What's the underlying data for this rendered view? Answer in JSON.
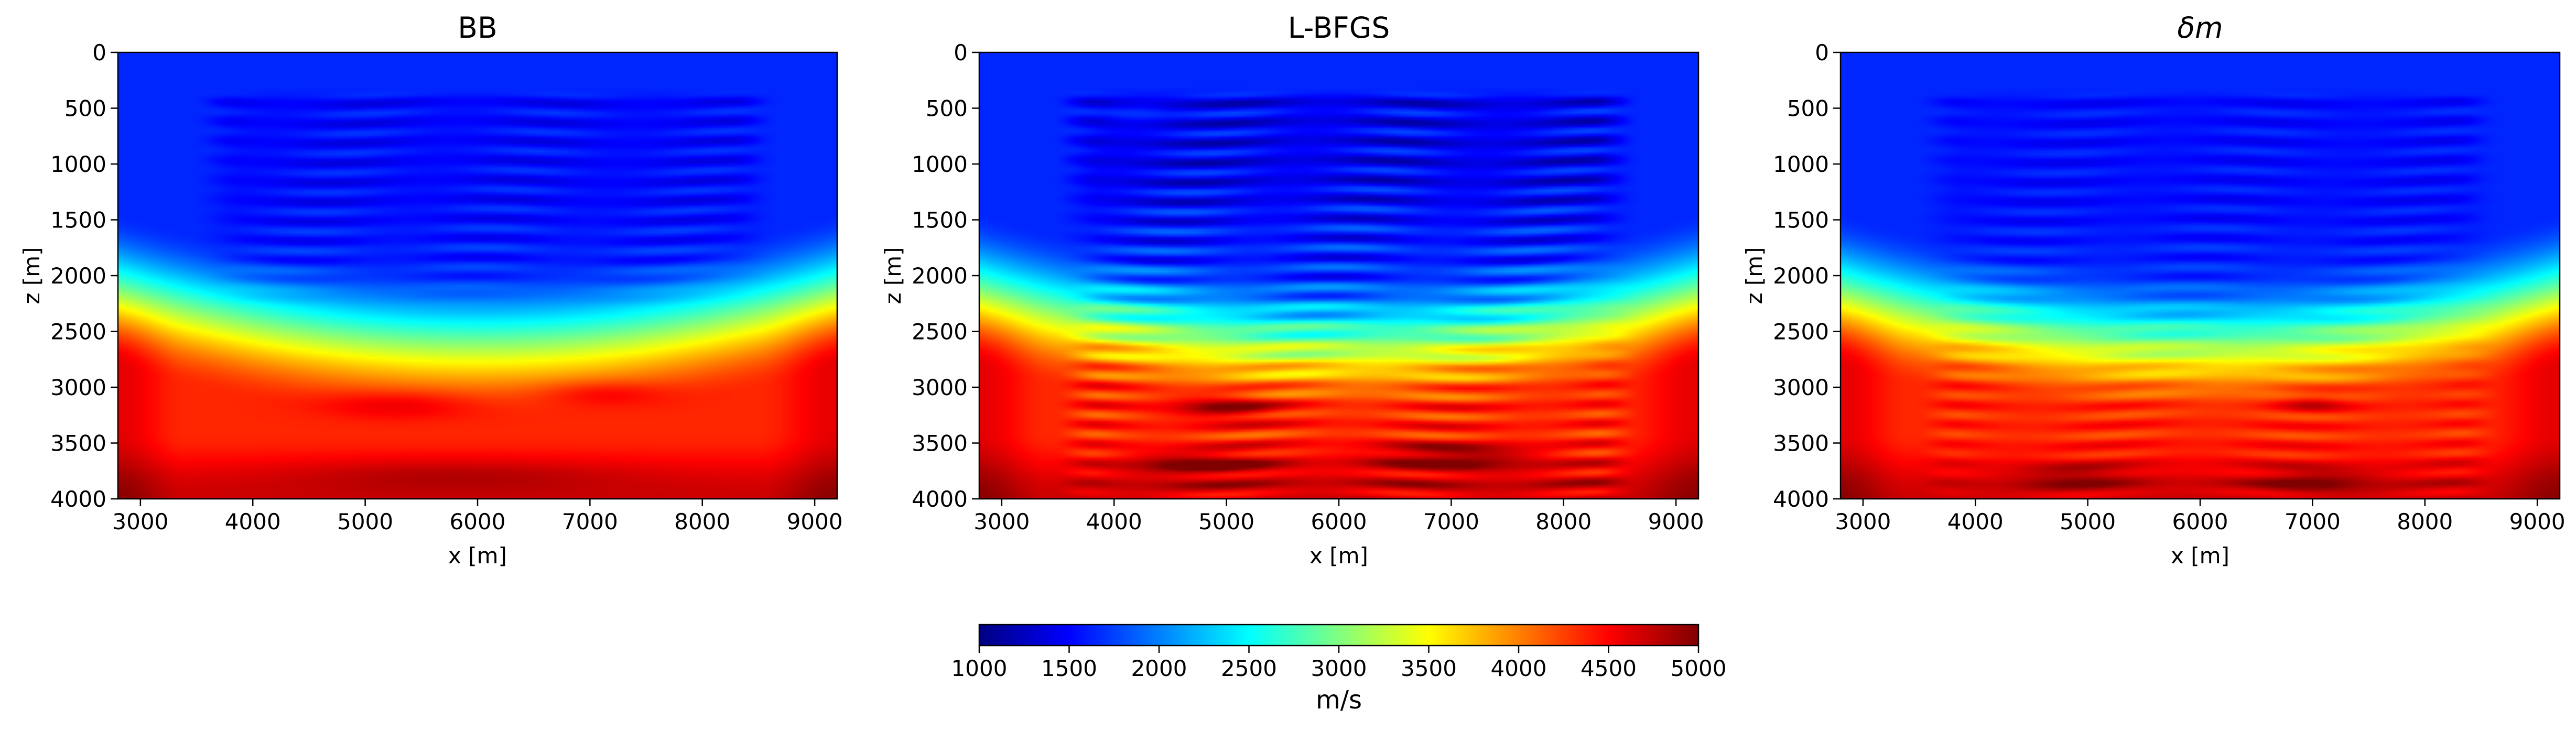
{
  "chart_data": {
    "type": "heatmap",
    "colormap": "jet",
    "panels": [
      {
        "title": "BB",
        "xlabel": "x [m]",
        "ylabel": "z [m]",
        "xlim": [
          2800,
          9200
        ],
        "ylim": [
          4000,
          0
        ],
        "xticks": [
          3000,
          4000,
          5000,
          6000,
          7000,
          8000,
          9000
        ],
        "yticks": [
          0,
          500,
          1000,
          1500,
          2000,
          2500,
          3000,
          3500,
          4000
        ],
        "variant": "bb"
      },
      {
        "title": "L-BFGS",
        "xlabel": "x [m]",
        "ylabel": "z [m]",
        "xlim": [
          2800,
          9200
        ],
        "ylim": [
          4000,
          0
        ],
        "xticks": [
          3000,
          4000,
          5000,
          6000,
          7000,
          8000,
          9000
        ],
        "yticks": [
          0,
          500,
          1000,
          1500,
          2000,
          2500,
          3000,
          3500,
          4000
        ],
        "variant": "lbfgs"
      },
      {
        "title": "δm",
        "title_italic": true,
        "xlabel": "x [m]",
        "ylabel": "z [m]",
        "xlim": [
          2800,
          9200
        ],
        "ylim": [
          4000,
          0
        ],
        "xticks": [
          3000,
          4000,
          5000,
          6000,
          7000,
          8000,
          9000
        ],
        "yticks": [
          0,
          500,
          1000,
          1500,
          2000,
          2500,
          3000,
          3500,
          4000
        ],
        "variant": "dm"
      }
    ],
    "colorbar": {
      "min": 1000,
      "max": 5000,
      "ticks": [
        1000,
        1500,
        2000,
        2500,
        3000,
        3500,
        4000,
        4500,
        5000
      ],
      "label": "m/s",
      "orientation": "horizontal"
    }
  }
}
